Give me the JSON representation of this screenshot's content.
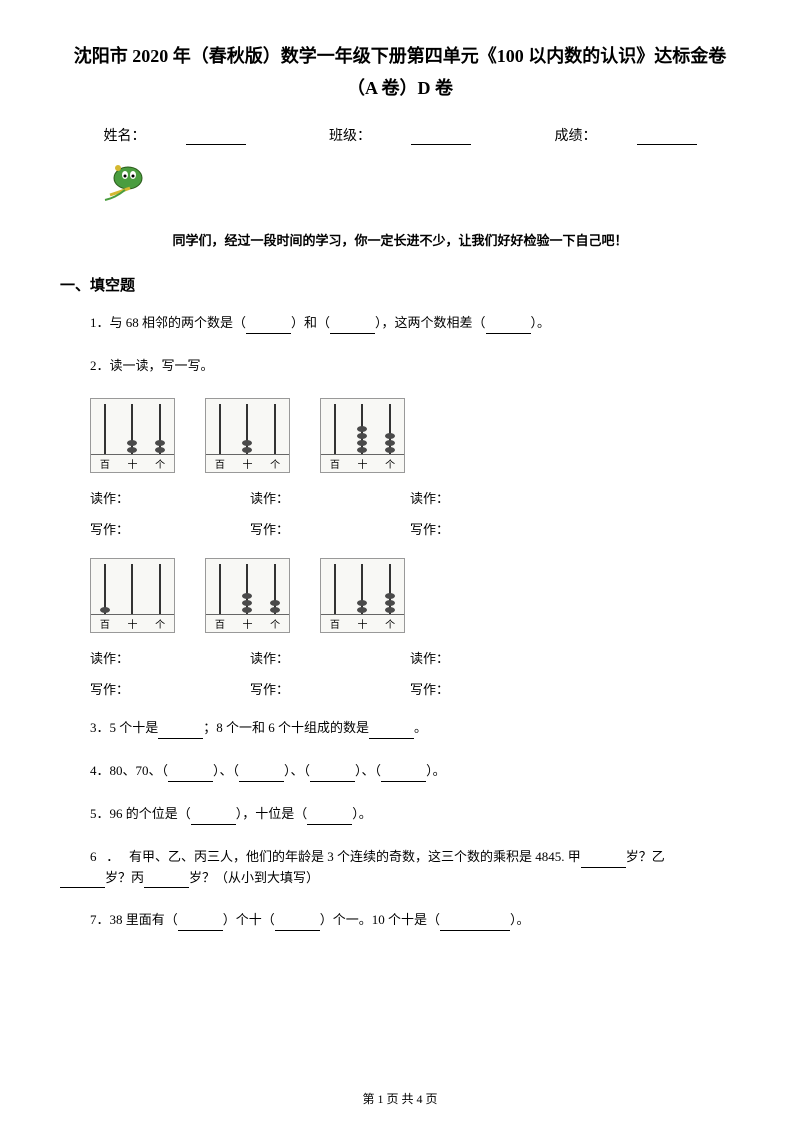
{
  "title": {
    "line1": "沈阳市 2020 年（春秋版）数学一年级下册第四单元《100 以内数的认识》达标金卷",
    "line2": "（A 卷）D 卷"
  },
  "info": {
    "name_label": "姓名：",
    "class_label": "班级：",
    "score_label": "成绩："
  },
  "encourage_text": "同学们，经过一段时间的学习，你一定长进不少，让我们好好检验一下自己吧！",
  "section1_title": "一、填空题",
  "q1": {
    "prefix": "1．与 68 相邻的两个数是（",
    "mid1": "）和（",
    "mid2": "），这两个数相差（",
    "suffix": "）。"
  },
  "q2": {
    "text": "2．读一读，写一写。"
  },
  "abacus_labels": {
    "bai": "百",
    "shi": "十",
    "ge": "个"
  },
  "read_label": "读作：",
  "write_label": "写作：",
  "abacus1": [
    {
      "bai": 0,
      "shi": 2,
      "ge": 2
    },
    {
      "bai": 0,
      "shi": 2,
      "ge": 0
    },
    {
      "bai": 0,
      "shi": 4,
      "ge": 3
    }
  ],
  "abacus2": [
    {
      "bai": 1,
      "shi": 0,
      "ge": 0
    },
    {
      "bai": 0,
      "shi": 3,
      "ge": 2
    },
    {
      "bai": 0,
      "shi": 2,
      "ge": 3
    }
  ],
  "q3": {
    "p1": "3．5 个十是",
    "p2": "；8 个一和 6 个十组成的数是",
    "p3": "。"
  },
  "q4": {
    "p1": "4．80、70、（",
    "p2": "）、（",
    "p3": "）、（",
    "p4": "）、（",
    "p5": "）。"
  },
  "q5": {
    "p1": "5．96 的个位是（",
    "p2": "），十位是（",
    "p3": "）。"
  },
  "q6": {
    "p1": "6   ．   有甲、乙、丙三人，他们的年龄是 3 个连续的奇数，这三个数的乘积是 4845. 甲",
    "p2": "岁？乙",
    "p3": "岁？丙",
    "p4": "岁？（从小到大填写）"
  },
  "q7": {
    "p1": "7．38 里面有（",
    "p2": "）个十（",
    "p3": "）个一。10 个十是（",
    "p4": "）。"
  },
  "footer": {
    "text": "第 1 页 共 4 页"
  },
  "colors": {
    "mascot_green": "#4a9d3f",
    "mascot_yellow": "#d4b830",
    "mascot_dark": "#2a5a1a"
  }
}
